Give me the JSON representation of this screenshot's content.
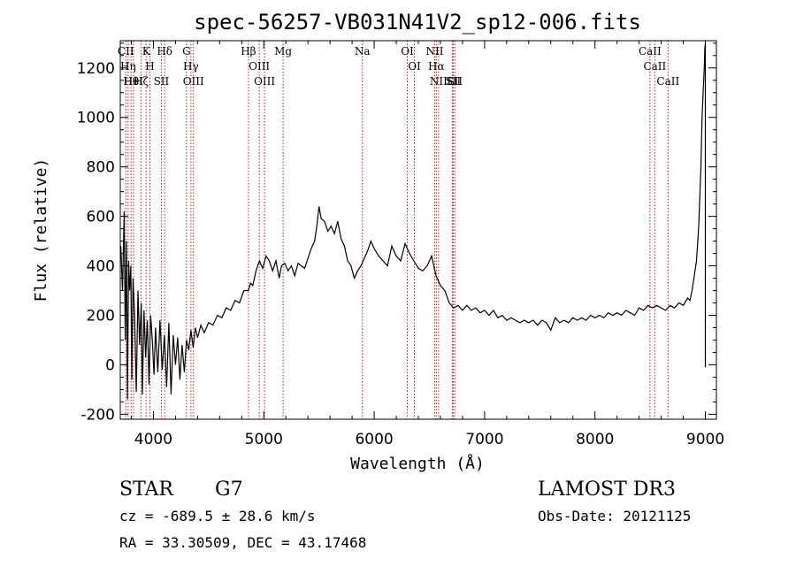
{
  "chart_data": {
    "type": "line",
    "title": "spec-56257-VB031N41V2_sp12-006.fits",
    "xlabel": "Wavelength (Å)",
    "ylabel": "Flux (relative)",
    "xlim": [
      3700,
      9100
    ],
    "ylim": [
      -220,
      1310
    ],
    "x_ticks": [
      4000,
      5000,
      6000,
      7000,
      8000,
      9000
    ],
    "y_ticks": [
      -200,
      0,
      200,
      400,
      600,
      800,
      1000,
      1200
    ],
    "grid": false,
    "series": [
      {
        "points": [
          [
            3705,
            480
          ],
          [
            3720,
            300
          ],
          [
            3735,
            620
          ],
          [
            3745,
            100
          ],
          [
            3755,
            500
          ],
          [
            3765,
            -140
          ],
          [
            3775,
            420
          ],
          [
            3785,
            300
          ],
          [
            3795,
            400
          ],
          [
            3805,
            -60
          ],
          [
            3815,
            350
          ],
          [
            3830,
            200
          ],
          [
            3845,
            -110
          ],
          [
            3860,
            300
          ],
          [
            3875,
            80
          ],
          [
            3890,
            250
          ],
          [
            3900,
            -120
          ],
          [
            3915,
            220
          ],
          [
            3930,
            30
          ],
          [
            3945,
            180
          ],
          [
            3960,
            -80
          ],
          [
            3975,
            200
          ],
          [
            3990,
            100
          ],
          [
            4005,
            -40
          ],
          [
            4020,
            150
          ],
          [
            4040,
            -30
          ],
          [
            4060,
            180
          ],
          [
            4080,
            -20
          ],
          [
            4100,
            120
          ],
          [
            4120,
            -90
          ],
          [
            4140,
            170
          ],
          [
            4160,
            -120
          ],
          [
            4180,
            120
          ],
          [
            4200,
            0
          ],
          [
            4220,
            110
          ],
          [
            4240,
            -60
          ],
          [
            4260,
            80
          ],
          [
            4280,
            -30
          ],
          [
            4300,
            100
          ],
          [
            4320,
            60
          ],
          [
            4340,
            140
          ],
          [
            4360,
            70
          ],
          [
            4380,
            150
          ],
          [
            4400,
            110
          ],
          [
            4430,
            160
          ],
          [
            4460,
            130
          ],
          [
            4500,
            170
          ],
          [
            4540,
            160
          ],
          [
            4580,
            200
          ],
          [
            4620,
            190
          ],
          [
            4660,
            230
          ],
          [
            4700,
            220
          ],
          [
            4740,
            260
          ],
          [
            4780,
            250
          ],
          [
            4820,
            300
          ],
          [
            4860,
            300
          ],
          [
            4880,
            330
          ],
          [
            4900,
            320
          ],
          [
            4930,
            380
          ],
          [
            4960,
            420
          ],
          [
            4990,
            390
          ],
          [
            5020,
            440
          ],
          [
            5050,
            420
          ],
          [
            5080,
            380
          ],
          [
            5110,
            420
          ],
          [
            5140,
            350
          ],
          [
            5160,
            400
          ],
          [
            5190,
            410
          ],
          [
            5220,
            380
          ],
          [
            5250,
            400
          ],
          [
            5280,
            360
          ],
          [
            5310,
            410
          ],
          [
            5340,
            400
          ],
          [
            5370,
            390
          ],
          [
            5400,
            430
          ],
          [
            5430,
            470
          ],
          [
            5460,
            500
          ],
          [
            5480,
            560
          ],
          [
            5500,
            640
          ],
          [
            5520,
            590
          ],
          [
            5550,
            580
          ],
          [
            5580,
            540
          ],
          [
            5610,
            560
          ],
          [
            5640,
            530
          ],
          [
            5670,
            580
          ],
          [
            5700,
            510
          ],
          [
            5730,
            480
          ],
          [
            5760,
            420
          ],
          [
            5790,
            400
          ],
          [
            5820,
            350
          ],
          [
            5850,
            380
          ],
          [
            5880,
            400
          ],
          [
            5910,
            430
          ],
          [
            5940,
            460
          ],
          [
            5970,
            500
          ],
          [
            6000,
            470
          ],
          [
            6040,
            440
          ],
          [
            6080,
            420
          ],
          [
            6120,
            400
          ],
          [
            6160,
            480
          ],
          [
            6200,
            440
          ],
          [
            6240,
            420
          ],
          [
            6280,
            490
          ],
          [
            6320,
            450
          ],
          [
            6360,
            420
          ],
          [
            6400,
            390
          ],
          [
            6440,
            380
          ],
          [
            6480,
            400
          ],
          [
            6520,
            440
          ],
          [
            6560,
            360
          ],
          [
            6600,
            320
          ],
          [
            6640,
            300
          ],
          [
            6680,
            250
          ],
          [
            6720,
            230
          ],
          [
            6760,
            240
          ],
          [
            6800,
            220
          ],
          [
            6840,
            240
          ],
          [
            6880,
            220
          ],
          [
            6920,
            230
          ],
          [
            6960,
            210
          ],
          [
            7000,
            220
          ],
          [
            7040,
            200
          ],
          [
            7080,
            220
          ],
          [
            7120,
            190
          ],
          [
            7160,
            200
          ],
          [
            7200,
            180
          ],
          [
            7240,
            190
          ],
          [
            7280,
            180
          ],
          [
            7320,
            170
          ],
          [
            7360,
            180
          ],
          [
            7400,
            170
          ],
          [
            7440,
            180
          ],
          [
            7480,
            160
          ],
          [
            7520,
            180
          ],
          [
            7560,
            170
          ],
          [
            7600,
            140
          ],
          [
            7640,
            190
          ],
          [
            7680,
            170
          ],
          [
            7720,
            180
          ],
          [
            7760,
            170
          ],
          [
            7800,
            190
          ],
          [
            7840,
            180
          ],
          [
            7880,
            190
          ],
          [
            7920,
            180
          ],
          [
            7960,
            200
          ],
          [
            8000,
            190
          ],
          [
            8040,
            200
          ],
          [
            8080,
            190
          ],
          [
            8120,
            210
          ],
          [
            8160,
            200
          ],
          [
            8200,
            210
          ],
          [
            8240,
            200
          ],
          [
            8280,
            220
          ],
          [
            8320,
            210
          ],
          [
            8360,
            200
          ],
          [
            8400,
            230
          ],
          [
            8440,
            220
          ],
          [
            8480,
            240
          ],
          [
            8520,
            230
          ],
          [
            8560,
            240
          ],
          [
            8600,
            230
          ],
          [
            8640,
            220
          ],
          [
            8680,
            240
          ],
          [
            8720,
            230
          ],
          [
            8760,
            250
          ],
          [
            8800,
            240
          ],
          [
            8840,
            270
          ],
          [
            8860,
            260
          ],
          [
            8880,
            300
          ],
          [
            8900,
            360
          ],
          [
            8920,
            420
          ],
          [
            8940,
            560
          ],
          [
            8960,
            800
          ],
          [
            8970,
            1000
          ],
          [
            8980,
            1100
          ],
          [
            8990,
            1200
          ],
          [
            8995,
            1280
          ],
          [
            9000,
            1300
          ],
          [
            9000,
            -10
          ]
        ]
      }
    ],
    "lines": [
      {
        "wavelength": 3750,
        "label": "CII"
      },
      {
        "wavelength": 3771,
        "label": "Hη"
      },
      {
        "wavelength": 3798,
        "label": "Hθ"
      },
      {
        "wavelength": 3820,
        "label": "HeI"
      },
      {
        "wavelength": 3889,
        "label": "Hζ"
      },
      {
        "wavelength": 3934,
        "label": "K"
      },
      {
        "wavelength": 3968,
        "label": "H"
      },
      {
        "wavelength": 4072,
        "label": "SII"
      },
      {
        "wavelength": 4102,
        "label": "Hδ"
      },
      {
        "wavelength": 4300,
        "label": "G"
      },
      {
        "wavelength": 4340,
        "label": "Hγ"
      },
      {
        "wavelength": 4363,
        "label": "OIII"
      },
      {
        "wavelength": 4861,
        "label": "Hβ"
      },
      {
        "wavelength": 4959,
        "label": "OIII"
      },
      {
        "wavelength": 5007,
        "label": "OIII"
      },
      {
        "wavelength": 5175,
        "label": "Mg"
      },
      {
        "wavelength": 5893,
        "label": "Na"
      },
      {
        "wavelength": 6300,
        "label": "OI"
      },
      {
        "wavelength": 6364,
        "label": "OI"
      },
      {
        "wavelength": 6548,
        "label": "NII"
      },
      {
        "wavelength": 6563,
        "label": "Hα"
      },
      {
        "wavelength": 6583,
        "label": "NII"
      },
      {
        "wavelength": 6708,
        "label": "Li"
      },
      {
        "wavelength": 6716,
        "label": "SII"
      },
      {
        "wavelength": 6731,
        "label": "SII"
      },
      {
        "wavelength": 8498,
        "label": "CaII"
      },
      {
        "wavelength": 8542,
        "label": "CaII"
      },
      {
        "wavelength": 8662,
        "label": "CaII"
      }
    ]
  },
  "info": {
    "class": "STAR",
    "subclass": "G7",
    "survey": "LAMOST DR3",
    "cz": "cz = -689.5 ± 28.6 km/s",
    "obsdate": "Obs-Date: 20121125",
    "radec": "RA =  33.30509, DEC =  43.17468"
  },
  "colors": {
    "line_marker": "#b22222",
    "spectrum": "#000000"
  }
}
